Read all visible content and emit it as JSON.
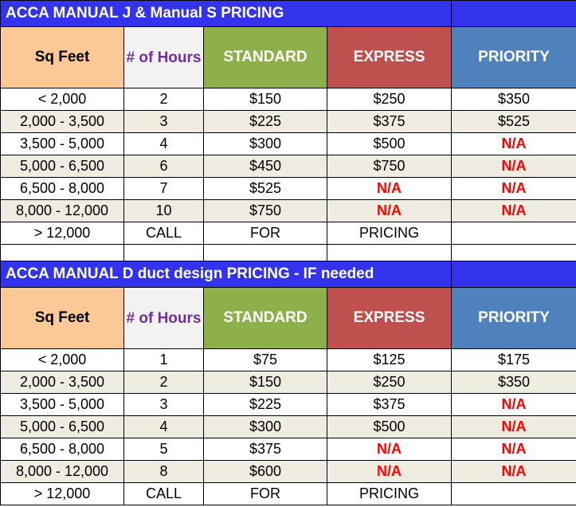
{
  "manual_js": {
    "title": "ACCA MANUAL J & Manual S PRICING",
    "headers": {
      "sq_feet": "Sq Feet",
      "hours": "# of Hours",
      "standard": "STANDARD",
      "express": "EXPRESS",
      "priority": "PRIORITY"
    },
    "rows": [
      {
        "sq": "< 2,000",
        "hours": "2",
        "standard": "$150",
        "express": "$250",
        "priority": "$350"
      },
      {
        "sq": "2,000 - 3,500",
        "hours": "3",
        "standard": "$225",
        "express": "$375",
        "priority": "$525"
      },
      {
        "sq": "3,500 - 5,000",
        "hours": "4",
        "standard": "$300",
        "express": "$500",
        "priority": "N/A"
      },
      {
        "sq": "5,000 - 6,500",
        "hours": "6",
        "standard": "$450",
        "express": "$750",
        "priority": "N/A"
      },
      {
        "sq": "6,500 - 8,000",
        "hours": "7",
        "standard": "$525",
        "express": "N/A",
        "priority": "N/A"
      },
      {
        "sq": "8,000 - 12,000",
        "hours": "10",
        "standard": "$750",
        "express": "N/A",
        "priority": "N/A"
      },
      {
        "sq": "> 12,000",
        "hours": "CALL",
        "standard": "FOR",
        "express": "PRICING",
        "priority": ""
      }
    ]
  },
  "manual_d": {
    "title": "ACCA MANUAL D duct design PRICING - IF needed",
    "headers": {
      "sq_feet": "Sq Feet",
      "hours": "# of Hours",
      "standard": "STANDARD",
      "express": "EXPRESS",
      "priority": "PRIORITY"
    },
    "rows": [
      {
        "sq": "< 2,000",
        "hours": "1",
        "standard": "$75",
        "express": "$125",
        "priority": "$175"
      },
      {
        "sq": "2,000 - 3,500",
        "hours": "2",
        "standard": "$150",
        "express": "$250",
        "priority": "$350"
      },
      {
        "sq": "3,500 - 5,000",
        "hours": "3",
        "standard": "$225",
        "express": "$375",
        "priority": "N/A"
      },
      {
        "sq": "5,000 - 6,500",
        "hours": "4",
        "standard": "$300",
        "express": "$500",
        "priority": "N/A"
      },
      {
        "sq": "6,500 - 8,000",
        "hours": "5",
        "standard": "$375",
        "express": "N/A",
        "priority": "N/A"
      },
      {
        "sq": "8,000 - 12,000",
        "hours": "8",
        "standard": "$600",
        "express": "N/A",
        "priority": "N/A"
      },
      {
        "sq": "> 12,000",
        "hours": "CALL",
        "standard": "FOR",
        "express": "PRICING",
        "priority": ""
      }
    ]
  },
  "colors": {
    "title_bg": "#3333ee",
    "sq_header_bg": "#fcc896",
    "hours_header_text": "#7030a0",
    "standard_bg": "#8db04a",
    "express_bg": "#c0504d",
    "priority_bg": "#4f81bd",
    "alt_row_bg": "#eeece1",
    "na_text": "#ff0000"
  }
}
